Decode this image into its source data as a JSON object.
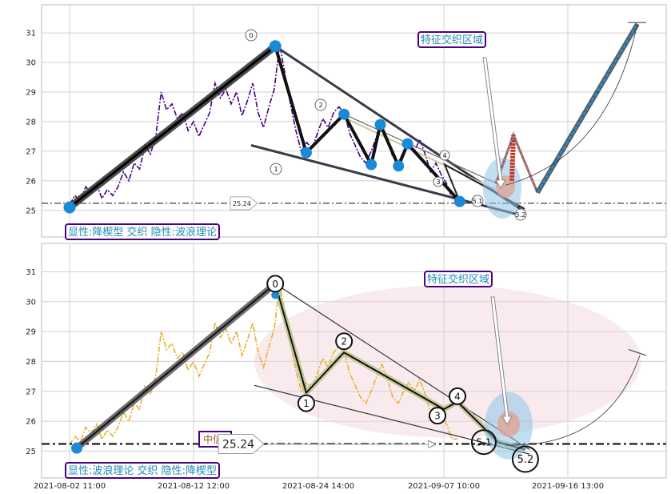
{
  "chart_data": [
    {
      "type": "line",
      "panel": "top",
      "grid": true,
      "x_ticks": [
        "2021-08-02 11:00",
        "2021-08-12 12:00",
        "2021-08-24 14:00",
        "2021-09-07 10:00",
        "2021-09-16 13:00"
      ],
      "y_ticks": [
        25,
        26,
        27,
        28,
        29,
        30,
        31
      ],
      "ylim": [
        24.1,
        31.95
      ],
      "colors": {
        "price": "#4b0082",
        "zigzag": "#111111",
        "node": "#1b8ad6",
        "up_arrow": "#1f8bd2",
        "down_arrow": "#c0392b",
        "label_border": "#4b0082",
        "label_text": "#1f8bb8"
      },
      "price_series": [
        25.2,
        25.5,
        25.3,
        25.8,
        25.6,
        25.9,
        25.4,
        25.7,
        25.5,
        25.8,
        26.3,
        26.0,
        26.6,
        26.4,
        27.2,
        26.9,
        27.5,
        29.0,
        28.4,
        28.6,
        28.1,
        28.3,
        27.7,
        28.0,
        27.5,
        27.9,
        28.3,
        29.3,
        28.8,
        29.1,
        28.6,
        29.0,
        28.2,
        28.7,
        29.3,
        28.3,
        27.8,
        28.5,
        29.1,
        30.6,
        29.6,
        28.6,
        27.7,
        27.0,
        27.3,
        27.1,
        27.6,
        28.1,
        27.8,
        28.3,
        28.5,
        28.3,
        27.6,
        27.2,
        26.8,
        26.6,
        27.0,
        27.5,
        27.9,
        27.4,
        26.8,
        26.6,
        27.0,
        27.3,
        27.0,
        27.4,
        26.9,
        26.3,
        26.6,
        26.2,
        25.9,
        25.4,
        25.4
      ],
      "zigzag_points": [
        {
          "x": "2021-08-02 11:00",
          "y": 25.1
        },
        {
          "x": "2021-08-20 10:00",
          "y": 30.55
        },
        {
          "x": "2021-08-23 10:00",
          "y": 26.95
        },
        {
          "x": "2021-08-27 10:00",
          "y": 28.25
        },
        {
          "x": "2021-08-30 10:00",
          "y": 26.55
        },
        {
          "x": "2021-08-31 10:00",
          "y": 27.9
        },
        {
          "x": "2021-09-02 10:00",
          "y": 26.5
        },
        {
          "x": "2021-09-03 10:00",
          "y": 27.25
        },
        {
          "x": "2021-09-08 14:00",
          "y": 25.3
        }
      ],
      "wave_labels": [
        "0",
        "1",
        "2",
        "3",
        "4",
        "5.1",
        "5.2"
      ],
      "hline": {
        "value": 25.24,
        "label": "25.24"
      },
      "annotations": {
        "zone": "特征交织区域",
        "footer": "显性:降楔型 交织 隐性:波浪理论"
      },
      "projection": {
        "down_peak": 27.55,
        "down_trough": 25.6,
        "up_end": 31.3
      }
    },
    {
      "type": "line",
      "panel": "bottom",
      "grid": true,
      "x_ticks": [
        "2021-08-02 11:00",
        "2021-08-12 12:00",
        "2021-08-24 14:00",
        "2021-09-07 10:00",
        "2021-09-16 13:00"
      ],
      "y_ticks": [
        25,
        26,
        27,
        28,
        29,
        30,
        31
      ],
      "ylim": [
        24.1,
        31.95
      ],
      "colors": {
        "price": "#e8b030",
        "zigzag": "#111111",
        "node": "#1b8ad6",
        "label_border": "#4b0082",
        "label_text": "#1f8bb8"
      },
      "wave_points": [
        {
          "label": "0",
          "x": "2021-08-20 10:00",
          "y": 30.6
        },
        {
          "label": "1",
          "x": "2021-08-23 10:00",
          "y": 26.95
        },
        {
          "label": "2",
          "x": "2021-08-27 10:00",
          "y": 28.3
        },
        {
          "label": "3",
          "x": "2021-09-07 10:00",
          "y": 26.4
        },
        {
          "label": "4",
          "x": "2021-09-08 10:00",
          "y": 26.65
        },
        {
          "label": "5.1",
          "x": "2021-09-11 10:00",
          "y": 25.3
        },
        {
          "label": "5.2",
          "x": "2021-09-13 10:00",
          "y": 25.05
        }
      ],
      "hline": {
        "value": 25.24,
        "label": "25.24"
      },
      "annotations": {
        "zone": "特征交织区域",
        "footer": "显性:波浪理论 交织 隐性:降楔型",
        "middle": "中信"
      }
    }
  ]
}
